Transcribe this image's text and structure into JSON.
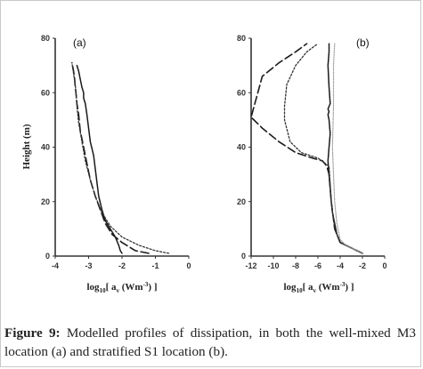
{
  "chart_data": [
    {
      "type": "line",
      "panel_label": "(a)",
      "ylabel": "Height (m)",
      "xlabel_base": "log",
      "xlabel_sub": "10",
      "xlabel_rest": "[ a",
      "xlabel_sub2": "v",
      "xlabel_unit": " (Wm",
      "xlabel_sup": "-3",
      "xlabel_end": ") ]",
      "xlim": [
        -4,
        0
      ],
      "ylim": [
        0,
        80
      ],
      "xticks": [
        "-4",
        "-3",
        "-2",
        "-1",
        "0"
      ],
      "yticks": [
        "0",
        "20",
        "40",
        "60",
        "80"
      ],
      "series": [
        {
          "style": "solid",
          "x": [
            -2.0,
            -2.05,
            -2.1,
            -2.2,
            -2.35,
            -2.5,
            -2.6,
            -2.7,
            -2.75,
            -2.8,
            -2.85,
            -2.95,
            -3.0,
            -3.05,
            -3.1,
            -3.15,
            -3.15,
            -3.2,
            -3.25,
            -3.3,
            -3.35
          ],
          "y": [
            1,
            2,
            4,
            7,
            10,
            13,
            17,
            22,
            27,
            32,
            37,
            42,
            47,
            52,
            56,
            58,
            60,
            62,
            65,
            68,
            70
          ]
        },
        {
          "style": "dashed",
          "x": [
            -1.2,
            -1.6,
            -2.0,
            -2.3,
            -2.5,
            -2.65,
            -2.8,
            -2.95,
            -3.05,
            -3.15,
            -3.25,
            -3.3,
            -3.35,
            -3.38,
            -3.4,
            -3.42,
            -3.45,
            -3.5
          ],
          "y": [
            1,
            2,
            5,
            8,
            12,
            17,
            22,
            28,
            34,
            40,
            46,
            52,
            56,
            60,
            62,
            65,
            68,
            71
          ]
        },
        {
          "style": "dotted",
          "x": [
            -0.6,
            -1.0,
            -1.5,
            -2.0,
            -2.35,
            -2.6,
            -2.8,
            -2.95,
            -3.1,
            -3.2,
            -3.3,
            -3.35,
            -3.38,
            -3.4,
            -3.45,
            -3.5
          ],
          "y": [
            1,
            2,
            4,
            7,
            11,
            16,
            22,
            28,
            35,
            42,
            49,
            55,
            60,
            63,
            67,
            71
          ]
        }
      ]
    },
    {
      "type": "line",
      "panel_label": "(b)",
      "xlabel_base": "log",
      "xlabel_sub": "10",
      "xlabel_rest": "[ a",
      "xlabel_sub2": "v",
      "xlabel_unit": " (Wm",
      "xlabel_sup": "-3",
      "xlabel_end": ") ]",
      "xlim": [
        -12,
        0
      ],
      "ylim": [
        0,
        80
      ],
      "xticks": [
        "-12",
        "-10",
        "-8",
        "-6",
        "-4",
        "-2",
        "0"
      ],
      "yticks": [
        "0",
        "20",
        "40",
        "60",
        "80"
      ],
      "series": [
        {
          "style": "solid",
          "x": [
            -2.0,
            -2.5,
            -3.0,
            -3.5,
            -4.0,
            -4.3,
            -4.5,
            -4.7,
            -4.8,
            -4.9,
            -5.0,
            -5.1,
            -5.0,
            -4.9,
            -5.0,
            -5.1,
            -5.0,
            -5.1,
            -4.9,
            -5.0,
            -5.1,
            -5.0,
            -5.0
          ],
          "y": [
            1,
            2,
            3,
            4,
            5,
            8,
            12,
            16,
            20,
            25,
            30,
            35,
            40,
            45,
            50,
            52,
            53,
            54,
            56,
            62,
            70,
            75,
            78
          ]
        },
        {
          "style": "dashed",
          "x": [
            -2.0,
            -2.5,
            -3.0,
            -3.5,
            -4.0,
            -4.5,
            -4.8,
            -5.0,
            -5.2,
            -5.6,
            -6.5,
            -8.0,
            -9.5,
            -11.0,
            -12.0,
            -11.0,
            -9.5,
            -8.0,
            -7.0
          ],
          "y": [
            1,
            2,
            3,
            4,
            5,
            10,
            20,
            30,
            33,
            35,
            36,
            38,
            42,
            47,
            51,
            66,
            71,
            75,
            78
          ]
        },
        {
          "style": "dotted",
          "x": [
            -2.0,
            -2.5,
            -3.0,
            -3.5,
            -4.0,
            -4.5,
            -4.8,
            -5.0,
            -6.0,
            -7.5,
            -8.5,
            -9.0,
            -9.0,
            -8.8,
            -8.0,
            -7.0,
            -6.0
          ],
          "y": [
            1,
            2,
            3,
            4,
            5,
            10,
            20,
            33,
            36,
            38,
            42,
            50,
            55,
            63,
            70,
            75,
            78
          ]
        },
        {
          "style": "fine-dotted",
          "x": [
            -2.0,
            -2.5,
            -3.0,
            -3.5,
            -4.0,
            -4.3,
            -4.5,
            -4.6,
            -4.7,
            -4.6,
            -4.6,
            -4.5
          ],
          "y": [
            1,
            2,
            3,
            4,
            6,
            12,
            20,
            30,
            40,
            55,
            70,
            78
          ]
        }
      ]
    }
  ],
  "caption": {
    "label": "Figure 9:",
    "text": " Modelled profiles of dissipation, in both the well-mixed M3 location (a) and stratified S1 location (b)."
  }
}
